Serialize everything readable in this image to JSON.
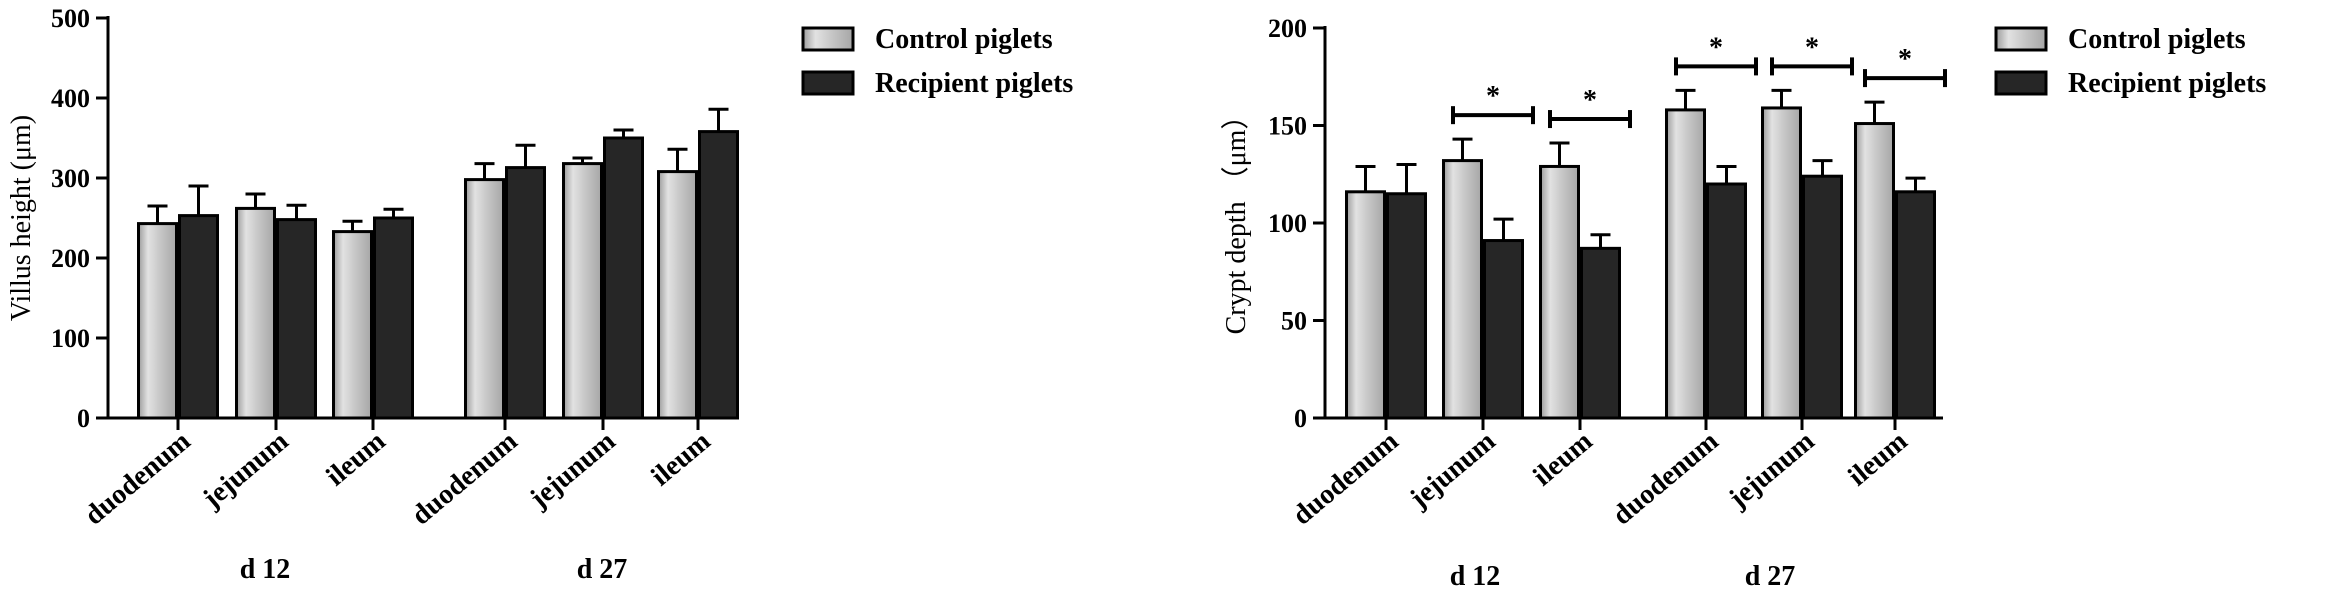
{
  "colors": {
    "control_fill": "#b3b3b3",
    "control_highlight": "#e3e3e3",
    "recipient_fill": "#262626",
    "axis": "#000000"
  },
  "chart_data": [
    {
      "type": "bar",
      "title": "",
      "ylabel": "Villus height (μm)",
      "xlabel": "",
      "ylim": [
        0,
        500
      ],
      "yticks": [
        "0",
        "100",
        "200",
        "300",
        "400",
        "500"
      ],
      "groups": [
        {
          "label": "d 12",
          "categories": [
            "duodenum",
            "jejunum",
            "ileum"
          ]
        },
        {
          "label": "d 27",
          "categories": [
            "duodenum",
            "jejunum",
            "ileum"
          ]
        }
      ],
      "categories": [
        "duodenum",
        "jejunum",
        "ileum",
        "duodenum",
        "jejunum",
        "ileum"
      ],
      "series": [
        {
          "name": "Control piglets",
          "values": [
            243,
            262,
            233,
            298,
            318,
            308
          ],
          "errors": [
            22,
            18,
            13,
            20,
            7,
            28
          ]
        },
        {
          "name": "Recipient piglets",
          "values": [
            253,
            248,
            250,
            313,
            350,
            358
          ],
          "errors": [
            37,
            18,
            11,
            28,
            10,
            28
          ]
        }
      ],
      "significance": [],
      "legend_position": "right",
      "grid": false
    },
    {
      "type": "bar",
      "title": "",
      "ylabel": "Crypt depth （μm）",
      "xlabel": "",
      "ylim": [
        0,
        200
      ],
      "yticks": [
        "0",
        "50",
        "100",
        "150",
        "200"
      ],
      "groups": [
        {
          "label": "d 12",
          "categories": [
            "duodenum",
            "jejunum",
            "ileum"
          ]
        },
        {
          "label": "d 27",
          "categories": [
            "duodenum",
            "jejunum",
            "ileum"
          ]
        }
      ],
      "categories": [
        "duodenum",
        "jejunum",
        "ileum",
        "duodenum",
        "jejunum",
        "ileum"
      ],
      "series": [
        {
          "name": "Control piglets",
          "values": [
            116,
            132,
            129,
            158,
            159,
            151
          ],
          "errors": [
            13,
            11,
            12,
            10,
            9,
            11
          ]
        },
        {
          "name": "Recipient piglets",
          "values": [
            115,
            91,
            87,
            120,
            124,
            116
          ],
          "errors": [
            15,
            11,
            7,
            9,
            8,
            7
          ]
        }
      ],
      "significance": [
        {
          "category_index": 1,
          "label": "*"
        },
        {
          "category_index": 2,
          "label": "*"
        },
        {
          "category_index": 3,
          "label": "*"
        },
        {
          "category_index": 4,
          "label": "*"
        },
        {
          "category_index": 5,
          "label": "*"
        }
      ],
      "legend_position": "right",
      "grid": false
    }
  ]
}
